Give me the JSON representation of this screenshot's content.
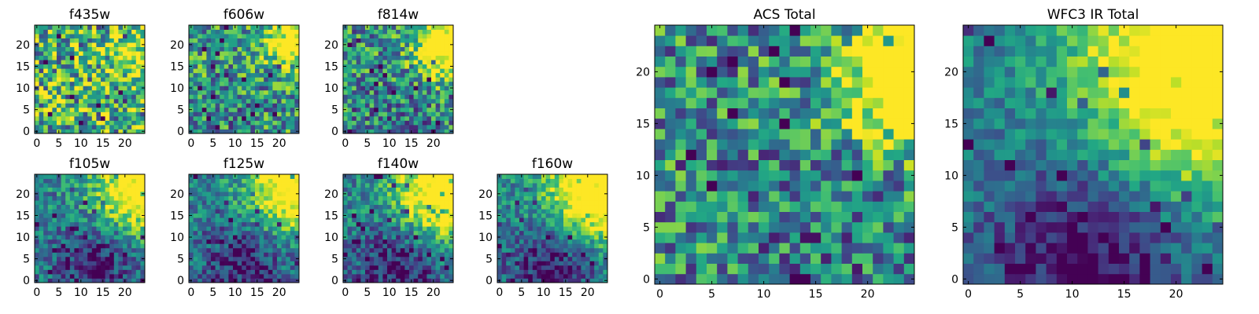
{
  "chart_data": [
    {
      "type": "heatmap",
      "title": "f435w",
      "xticks": [
        "0",
        "5",
        "10",
        "15",
        "20"
      ],
      "yticks": [
        "0",
        "5",
        "10",
        "15",
        "20"
      ],
      "xlim": [
        -0.5,
        24.5
      ],
      "ylim": [
        -0.5,
        24.5
      ],
      "colormap": "viridis",
      "pattern": {
        "noise": 0.55,
        "bright_center": [
          23,
          19
        ],
        "bright_strength": 0.25,
        "bright_radius": 5,
        "dark_center": [
          10,
          3
        ],
        "dark_strength": 0.0,
        "dark_radius": 6,
        "base": 0.62,
        "seed": 11
      }
    },
    {
      "type": "heatmap",
      "title": "f606w",
      "xticks": [
        "0",
        "5",
        "10",
        "15",
        "20"
      ],
      "yticks": [
        "0",
        "5",
        "10",
        "15",
        "20"
      ],
      "xlim": [
        -0.5,
        24.5
      ],
      "ylim": [
        -0.5,
        24.5
      ],
      "colormap": "viridis",
      "pattern": {
        "noise": 0.45,
        "bright_center": [
          23,
          21
        ],
        "bright_strength": 0.5,
        "bright_radius": 4,
        "dark_center": [
          10,
          3
        ],
        "dark_strength": 0.05,
        "dark_radius": 6,
        "base": 0.55,
        "seed": 23
      }
    },
    {
      "type": "heatmap",
      "title": "f814w",
      "xticks": [
        "0",
        "5",
        "10",
        "15",
        "20"
      ],
      "yticks": [
        "0",
        "5",
        "10",
        "15",
        "20"
      ],
      "xlim": [
        -0.5,
        24.5
      ],
      "ylim": [
        -0.5,
        24.5
      ],
      "colormap": "viridis",
      "pattern": {
        "noise": 0.45,
        "bright_center": [
          23,
          20
        ],
        "bright_strength": 0.6,
        "bright_radius": 5,
        "dark_center": [
          12,
          3
        ],
        "dark_strength": 0.05,
        "dark_radius": 6,
        "base": 0.5,
        "seed": 37
      }
    },
    {
      "type": "heatmap",
      "title": "f105w",
      "xticks": [
        "0",
        "5",
        "10",
        "15",
        "20"
      ],
      "yticks": [
        "0",
        "5",
        "10",
        "15",
        "20"
      ],
      "xlim": [
        -0.5,
        24.5
      ],
      "ylim": [
        -0.5,
        24.5
      ],
      "colormap": "viridis",
      "pattern": {
        "noise": 0.3,
        "bright_center": [
          23,
          21
        ],
        "bright_strength": 0.55,
        "bright_radius": 7,
        "dark_center": [
          13,
          4
        ],
        "dark_strength": 0.2,
        "dark_radius": 7,
        "base": 0.45,
        "seed": 41
      }
    },
    {
      "type": "heatmap",
      "title": "f125w",
      "xticks": [
        "0",
        "5",
        "10",
        "15",
        "20"
      ],
      "yticks": [
        "0",
        "5",
        "10",
        "15",
        "20"
      ],
      "xlim": [
        -0.5,
        24.5
      ],
      "ylim": [
        -0.5,
        24.5
      ],
      "colormap": "viridis",
      "pattern": {
        "noise": 0.3,
        "bright_center": [
          23,
          21
        ],
        "bright_strength": 0.55,
        "bright_radius": 7,
        "dark_center": [
          12,
          4
        ],
        "dark_strength": 0.2,
        "dark_radius": 7,
        "base": 0.45,
        "seed": 53
      }
    },
    {
      "type": "heatmap",
      "title": "f140w",
      "xticks": [
        "0",
        "5",
        "10",
        "15",
        "20"
      ],
      "yticks": [
        "0",
        "5",
        "10",
        "15",
        "20"
      ],
      "xlim": [
        -0.5,
        24.5
      ],
      "ylim": [
        -0.5,
        24.5
      ],
      "colormap": "viridis",
      "pattern": {
        "noise": 0.3,
        "bright_center": [
          23,
          21
        ],
        "bright_strength": 0.6,
        "bright_radius": 8,
        "dark_center": [
          12,
          3
        ],
        "dark_strength": 0.22,
        "dark_radius": 7,
        "base": 0.45,
        "seed": 67
      }
    },
    {
      "type": "heatmap",
      "title": "f160w",
      "xticks": [
        "0",
        "5",
        "10",
        "15",
        "20"
      ],
      "yticks": [
        "0",
        "5",
        "10",
        "15",
        "20"
      ],
      "xlim": [
        -0.5,
        24.5
      ],
      "ylim": [
        -0.5,
        24.5
      ],
      "colormap": "viridis",
      "pattern": {
        "noise": 0.28,
        "bright_center": [
          23,
          21
        ],
        "bright_strength": 0.65,
        "bright_radius": 8,
        "dark_center": [
          12,
          3
        ],
        "dark_strength": 0.22,
        "dark_radius": 7,
        "base": 0.45,
        "seed": 79
      }
    },
    {
      "type": "heatmap",
      "title": "ACS Total",
      "xticks": [
        "0",
        "5",
        "10",
        "15",
        "20"
      ],
      "yticks": [
        "0",
        "5",
        "10",
        "15",
        "20"
      ],
      "xlim": [
        -0.5,
        24.5
      ],
      "ylim": [
        -0.5,
        24.5
      ],
      "colormap": "viridis",
      "pattern": {
        "noise": 0.45,
        "bright_center": [
          23,
          19
        ],
        "bright_strength": 0.65,
        "bright_radius": 4,
        "dark_center": [
          16,
          4
        ],
        "dark_strength": 0.05,
        "dark_radius": 6,
        "base": 0.48,
        "seed": 97
      }
    },
    {
      "type": "heatmap",
      "title": "WFC3 IR Total",
      "xticks": [
        "0",
        "5",
        "10",
        "15",
        "20"
      ],
      "yticks": [
        "0",
        "5",
        "10",
        "15",
        "20"
      ],
      "xlim": [
        -0.5,
        24.5
      ],
      "ylim": [
        -0.5,
        24.5
      ],
      "colormap": "viridis",
      "pattern": {
        "noise": 0.22,
        "bright_center": [
          24,
          21
        ],
        "bright_strength": 0.7,
        "bright_radius": 9,
        "dark_center": [
          12,
          2
        ],
        "dark_strength": 0.25,
        "dark_radius": 7,
        "base": 0.42,
        "seed": 131
      }
    }
  ]
}
